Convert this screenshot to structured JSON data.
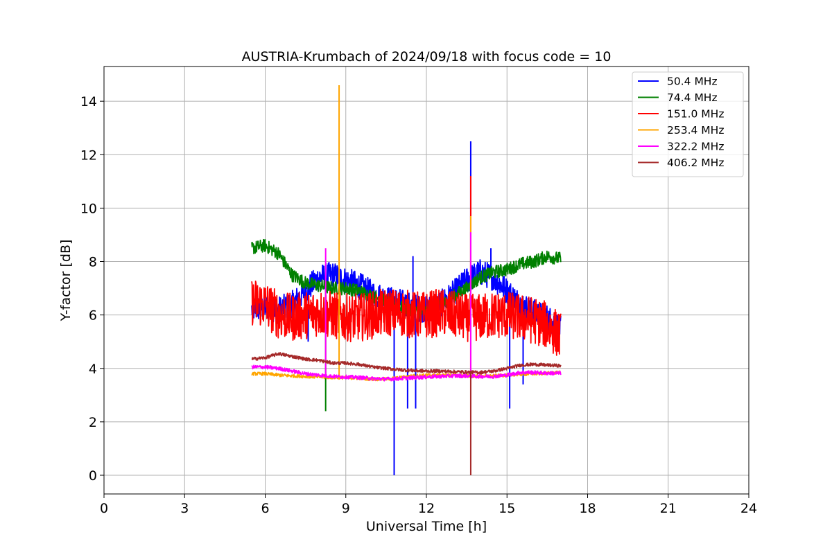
{
  "chart_data": {
    "type": "line",
    "title": "AUSTRIA-Krumbach of 2024/09/18 with focus code = 10",
    "xlabel": "Universal Time [h]",
    "ylabel": "Y-factor [dB]",
    "xlim": [
      0,
      24
    ],
    "ylim": [
      -0.7,
      15.3
    ],
    "xticks": [
      0,
      3,
      6,
      9,
      12,
      15,
      18,
      21,
      24
    ],
    "xtick_labels": [
      "0",
      "3",
      "6",
      "9",
      "12",
      "15",
      "18",
      "21",
      "24"
    ],
    "yticks": [
      0,
      2,
      4,
      6,
      8,
      10,
      12,
      14
    ],
    "ytick_labels": [
      "0",
      "2",
      "4",
      "6",
      "8",
      "10",
      "12",
      "14"
    ],
    "grid": true,
    "legend_position": "top-right",
    "series": [
      {
        "name": " 50.4 MHz",
        "color": "#0000ff",
        "x": [
          5.5,
          6.0,
          6.5,
          7.0,
          7.5,
          8.0,
          8.5,
          9.0,
          9.5,
          10.0,
          10.5,
          11.0,
          11.5,
          12.0,
          12.5,
          13.0,
          13.5,
          14.0,
          14.5,
          15.0,
          15.5,
          16.0,
          16.5,
          17.0
        ],
        "values": [
          6.2,
          6.3,
          6.2,
          6.4,
          6.9,
          7.4,
          7.5,
          7.3,
          7.1,
          6.8,
          6.6,
          6.5,
          6.3,
          6.2,
          6.4,
          6.8,
          7.3,
          7.6,
          7.4,
          6.9,
          6.4,
          6.1,
          5.9,
          5.5
        ],
        "noise": 0.5,
        "spikes": [
          [
            7.6,
            5.0
          ],
          [
            10.8,
            0.0
          ],
          [
            11.3,
            2.5
          ],
          [
            11.6,
            2.5
          ],
          [
            11.5,
            8.2
          ],
          [
            13.65,
            12.5
          ],
          [
            14.4,
            8.5
          ],
          [
            15.1,
            2.5
          ],
          [
            15.6,
            3.4
          ]
        ]
      },
      {
        "name": " 74.4 MHz",
        "color": "#008000",
        "x": [
          5.5,
          6.0,
          6.5,
          7.0,
          7.5,
          8.0,
          8.5,
          9.0,
          9.5,
          10.0,
          10.5,
          11.0,
          11.5,
          12.0,
          12.5,
          13.0,
          13.5,
          14.0,
          14.5,
          15.0,
          15.5,
          16.0,
          16.5,
          17.0
        ],
        "values": [
          8.5,
          8.6,
          8.3,
          7.5,
          7.2,
          7.1,
          7.0,
          7.0,
          6.9,
          6.7,
          6.5,
          6.3,
          6.1,
          6.1,
          6.3,
          6.7,
          7.0,
          7.4,
          7.6,
          7.7,
          7.9,
          8.0,
          8.2,
          8.1
        ],
        "noise": 0.25,
        "spikes": [
          [
            8.25,
            2.4
          ]
        ]
      },
      {
        "name": " 151.0 MHz",
        "color": "#ff0000",
        "x": [
          5.5,
          6.0,
          6.5,
          7.0,
          7.5,
          8.0,
          8.5,
          9.0,
          9.5,
          10.0,
          10.5,
          11.0,
          11.5,
          12.0,
          12.5,
          13.0,
          13.5,
          14.0,
          14.5,
          15.0,
          15.5,
          16.0,
          16.5,
          17.0
        ],
        "values": [
          6.5,
          6.4,
          6.0,
          5.9,
          6.0,
          6.1,
          6.0,
          5.9,
          5.9,
          6.0,
          6.1,
          6.1,
          6.0,
          6.0,
          6.1,
          6.0,
          5.9,
          5.9,
          6.0,
          6.0,
          5.9,
          5.8,
          5.6,
          5.2
        ],
        "noise": 0.9,
        "spikes": [
          [
            13.65,
            11.2
          ]
        ]
      },
      {
        "name": " 253.4 MHz",
        "color": "#ffa500",
        "x": [
          5.5,
          6.0,
          6.5,
          7.0,
          7.5,
          8.0,
          8.5,
          9.0,
          9.5,
          10.0,
          10.5,
          11.0,
          11.5,
          12.0,
          12.5,
          13.0,
          13.5,
          14.0,
          14.5,
          15.0,
          15.5,
          16.0,
          16.5,
          17.0
        ],
        "values": [
          3.8,
          3.8,
          3.75,
          3.72,
          3.7,
          3.68,
          3.66,
          3.65,
          3.63,
          3.6,
          3.6,
          3.65,
          3.72,
          3.75,
          3.75,
          3.75,
          3.72,
          3.7,
          3.72,
          3.75,
          3.78,
          3.8,
          3.82,
          3.85
        ],
        "noise": 0.06,
        "spikes": [
          [
            8.75,
            14.6
          ],
          [
            13.65,
            9.7
          ]
        ]
      },
      {
        "name": " 322.2 MHz",
        "color": "#ff00ff",
        "x": [
          5.5,
          6.0,
          6.5,
          7.0,
          7.5,
          8.0,
          8.5,
          9.0,
          9.5,
          10.0,
          10.5,
          11.0,
          11.5,
          12.0,
          12.5,
          13.0,
          13.5,
          14.0,
          14.5,
          15.0,
          15.5,
          16.0,
          16.5,
          17.0
        ],
        "values": [
          4.05,
          4.05,
          4.0,
          3.9,
          3.8,
          3.75,
          3.7,
          3.68,
          3.66,
          3.62,
          3.6,
          3.62,
          3.65,
          3.68,
          3.7,
          3.72,
          3.72,
          3.7,
          3.7,
          3.75,
          3.85,
          3.85,
          3.82,
          3.82
        ],
        "noise": 0.07,
        "spikes": [
          [
            8.25,
            8.5
          ],
          [
            13.65,
            9.1
          ]
        ]
      },
      {
        "name": " 406.2 MHz",
        "color": "#a52a2a",
        "x": [
          5.5,
          6.0,
          6.5,
          7.0,
          7.5,
          8.0,
          8.5,
          9.0,
          9.5,
          10.0,
          10.5,
          11.0,
          11.5,
          12.0,
          12.5,
          13.0,
          13.5,
          14.0,
          14.5,
          15.0,
          15.5,
          16.0,
          16.5,
          17.0
        ],
        "values": [
          4.35,
          4.4,
          4.55,
          4.45,
          4.35,
          4.3,
          4.2,
          4.2,
          4.15,
          4.05,
          4.0,
          3.95,
          3.92,
          3.9,
          3.9,
          3.88,
          3.86,
          3.85,
          3.9,
          4.0,
          4.12,
          4.15,
          4.12,
          4.1
        ],
        "noise": 0.06,
        "spikes": [
          [
            13.65,
            0.0
          ]
        ]
      }
    ]
  }
}
